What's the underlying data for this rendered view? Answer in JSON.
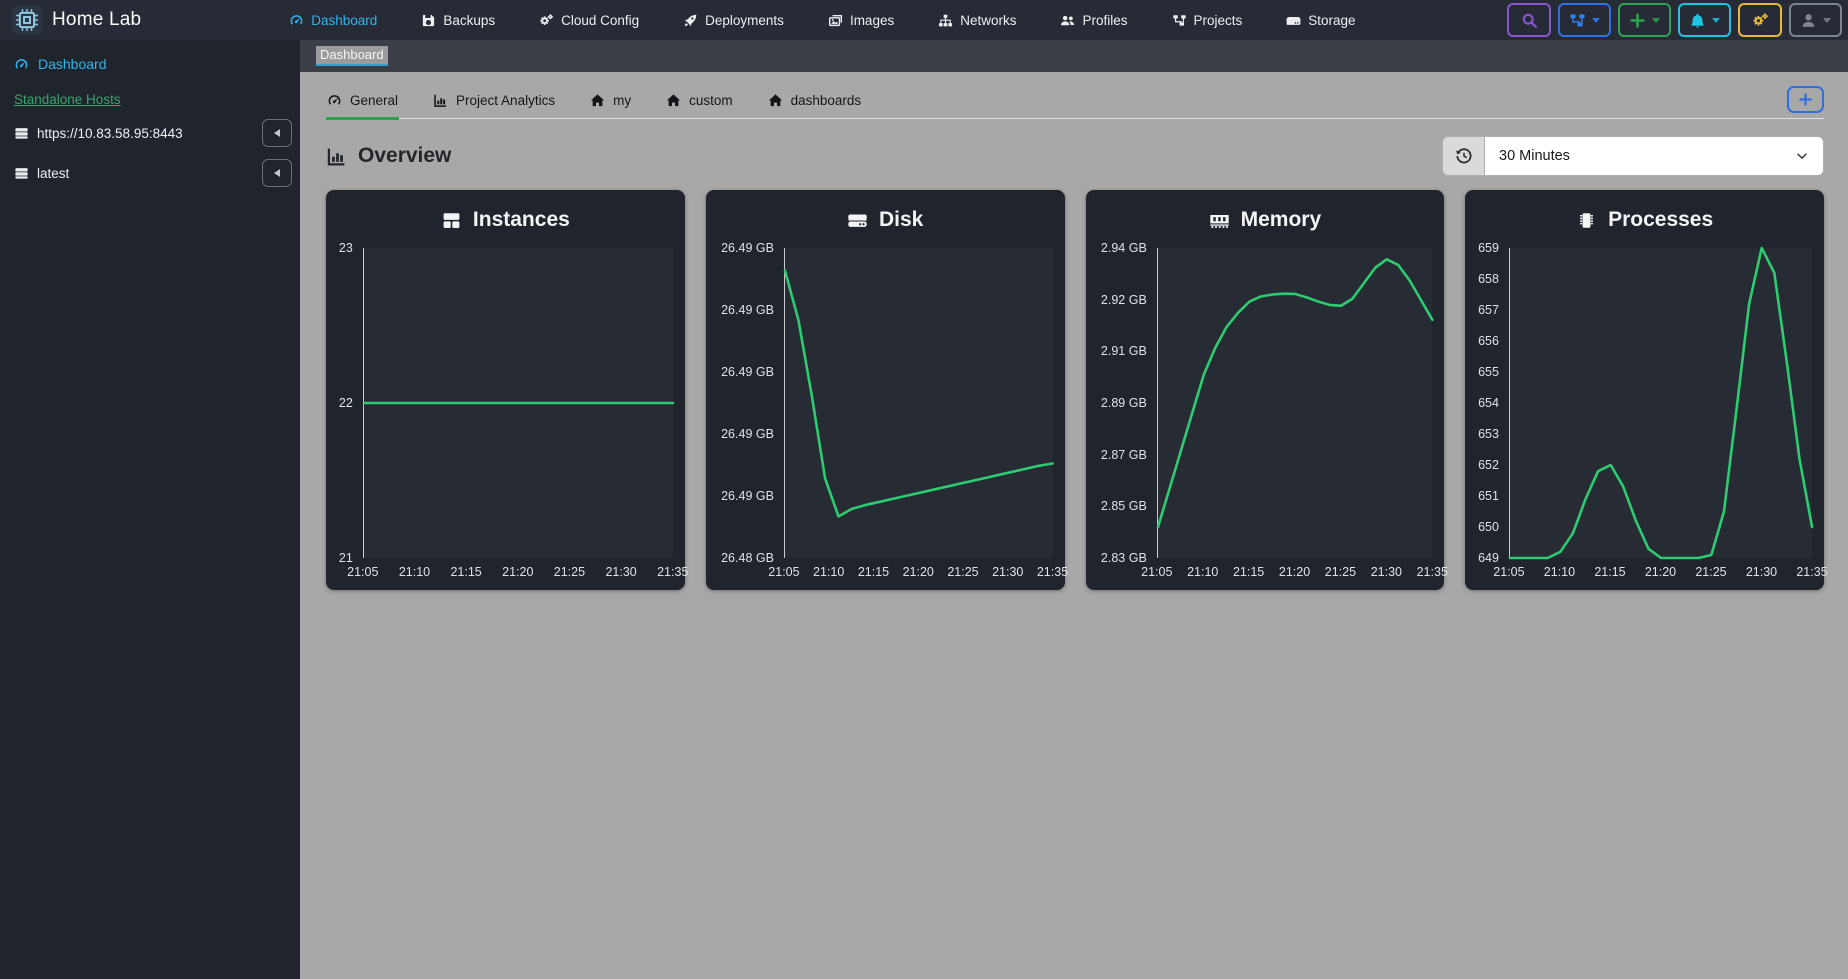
{
  "app": {
    "title": "Home Lab",
    "logo_icon": "cpu-icon"
  },
  "header": {
    "nav": {
      "items": [
        {
          "label": "Dashboard",
          "icon": "gauge-icon",
          "active": true
        },
        {
          "label": "Backups",
          "icon": "floppy-icon",
          "active": false
        },
        {
          "label": "Cloud Config",
          "icon": "gears-icon",
          "active": false
        },
        {
          "label": "Deployments",
          "icon": "rocket-icon",
          "active": false
        },
        {
          "label": "Images",
          "icon": "images-icon",
          "active": false
        },
        {
          "label": "Networks",
          "icon": "sitemap-icon",
          "active": false
        },
        {
          "label": "Profiles",
          "icon": "users-icon",
          "active": false
        },
        {
          "label": "Projects",
          "icon": "project-diagram-icon",
          "active": false
        },
        {
          "label": "Storage",
          "icon": "hdd-icon",
          "active": false
        }
      ]
    },
    "actions": [
      {
        "name": "search",
        "icon": "search-icon",
        "color": "#8957d1",
        "caret": false
      },
      {
        "name": "cluster",
        "icon": "project-diagram-icon",
        "color": "#2f81f7",
        "caret": true
      },
      {
        "name": "create",
        "icon": "plus-icon",
        "color": "#2da44e",
        "caret": true
      },
      {
        "name": "notifications",
        "icon": "bell-icon",
        "color": "#1fc3e3",
        "caret": true
      },
      {
        "name": "settings",
        "icon": "gears-icon",
        "color": "#e8b93b",
        "caret": false
      },
      {
        "name": "account",
        "icon": "user-icon",
        "color": "#7d8590",
        "caret": true
      }
    ]
  },
  "sidebar": {
    "dashboard_label": "Dashboard",
    "hosts_heading": "Standalone Hosts",
    "hosts": [
      {
        "label": "https://10.83.58.95:8443",
        "icon": "server-icon"
      },
      {
        "label": "latest",
        "icon": "server-icon"
      }
    ]
  },
  "breadcrumb": {
    "label": "Dashboard"
  },
  "tabs": {
    "items": [
      {
        "label": "General",
        "icon": "gauge-icon",
        "active": true
      },
      {
        "label": "Project Analytics",
        "icon": "chart-column-icon",
        "active": false
      },
      {
        "label": "my",
        "icon": "house-icon",
        "active": false
      },
      {
        "label": "custom",
        "icon": "house-icon",
        "active": false
      },
      {
        "label": "dashboards",
        "icon": "house-icon",
        "active": false
      }
    ],
    "add_button_icon": "plus-icon"
  },
  "overview": {
    "title": "Overview",
    "icon": "chart-column-icon",
    "history_icon": "history-icon",
    "time_range": "30 Minutes"
  },
  "colors": {
    "header_bg": "#262b35",
    "sidebar_bg": "#20242c",
    "breadcrumb_bg": "#3a3e46",
    "content_bg": "#a8a8a8",
    "card_bg": "#20242d",
    "plot_bg": "#272b34",
    "chart_line": "#2ecc71",
    "accent_cyan": "#2fb4e9",
    "link_green": "#3da36f",
    "tab_green": "#27a348",
    "blue": "#2f6fe4",
    "purple": "#8957d1",
    "green": "#2da44e",
    "cyan": "#1fc3e3",
    "yellow": "#e8b93b",
    "gray": "#7d8590"
  },
  "chart_data": [
    {
      "type": "line",
      "title": "Instances",
      "icon": "boxes-icon",
      "x_ticks": [
        "21:05",
        "21:10",
        "21:15",
        "21:20",
        "21:25",
        "21:30",
        "21:35"
      ],
      "y_ticks": [
        "23",
        "22",
        "21"
      ],
      "ylim": [
        21,
        23
      ],
      "grid": false,
      "legend": "none",
      "x": [
        "21:05",
        "21:10",
        "21:15",
        "21:20",
        "21:25",
        "21:30",
        "21:35"
      ],
      "values": [
        22,
        22,
        22,
        22,
        22,
        22,
        22
      ]
    },
    {
      "type": "line",
      "title": "Disk",
      "icon": "hard-drive-icon",
      "x_ticks": [
        "21:05",
        "21:10",
        "21:15",
        "21:20",
        "21:25",
        "21:30",
        "21:35"
      ],
      "y_ticks": [
        "26.49 GB",
        "26.49 GB",
        "26.49 GB",
        "26.49 GB",
        "26.49 GB",
        "26.48 GB"
      ],
      "ylim": [
        26.4838,
        26.492
      ],
      "unit": "GB",
      "grid": false,
      "legend": "none",
      "values": [
        26.4914,
        26.4901,
        26.4881,
        26.4859,
        26.4849,
        26.4851,
        26.4852,
        26.48528,
        26.48536,
        26.48544,
        26.48552,
        26.4856,
        26.48568,
        26.48576,
        26.48584,
        26.48592,
        26.486,
        26.48608,
        26.48616,
        26.48624,
        26.4863
      ]
    },
    {
      "type": "line",
      "title": "Memory",
      "icon": "memory-icon",
      "x_ticks": [
        "21:05",
        "21:10",
        "21:15",
        "21:20",
        "21:25",
        "21:30",
        "21:35"
      ],
      "y_ticks": [
        "2.94 GB",
        "2.92 GB",
        "2.91 GB",
        "2.89 GB",
        "2.87 GB",
        "2.85 GB",
        "2.83 GB"
      ],
      "ylim": [
        2.83,
        2.94
      ],
      "unit": "GB",
      "grid": false,
      "legend": "none",
      "values": [
        2.841,
        2.8545,
        2.868,
        2.8815,
        2.895,
        2.9045,
        2.912,
        2.917,
        2.921,
        2.9228,
        2.9235,
        2.9238,
        2.9237,
        2.9225,
        2.921,
        2.9198,
        2.9195,
        2.922,
        2.9275,
        2.933,
        2.936,
        2.934,
        2.9285,
        2.9215,
        2.9145
      ]
    },
    {
      "type": "line",
      "title": "Processes",
      "icon": "microchip-icon",
      "x_ticks": [
        "21:05",
        "21:10",
        "21:15",
        "21:20",
        "21:25",
        "21:30",
        "21:35"
      ],
      "y_ticks": [
        "659",
        "658",
        "657",
        "656",
        "655",
        "654",
        "653",
        "652",
        "651",
        "650",
        "649"
      ],
      "ylim": [
        649,
        659
      ],
      "grid": false,
      "legend": "none",
      "values": [
        649,
        649,
        649,
        649,
        649.2,
        649.8,
        650.9,
        651.8,
        652,
        651.3,
        650.2,
        649.3,
        649,
        649,
        649,
        649,
        649.1,
        650.5,
        653.8,
        657.2,
        659,
        658.2,
        655.3,
        652.2,
        650
      ]
    }
  ]
}
